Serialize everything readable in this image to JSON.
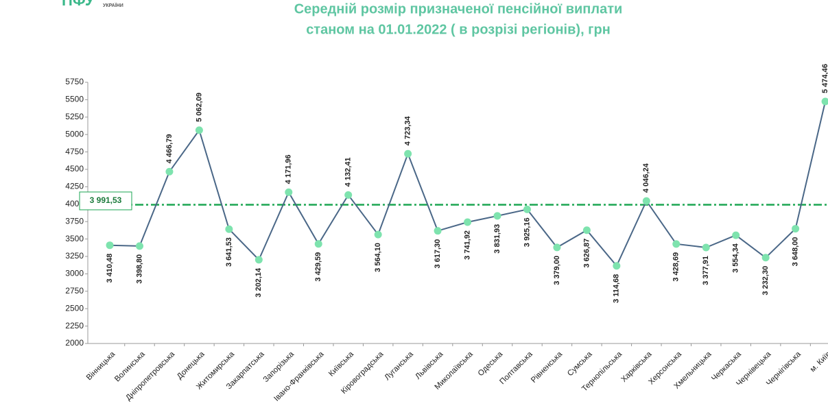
{
  "logo": {
    "text": "ПФУ",
    "subtext": "УКРАЇНИ"
  },
  "chart_data": {
    "type": "line",
    "title": "Середній розмір призначеної пенсійної виплати",
    "subtitle": "станом на 01.01.2022 ( в розрізі регіонів), грн",
    "categories": [
      "Вінницька",
      "Волинська",
      "Дніпропетровська",
      "Донецька",
      "Житомирська",
      "Закарпатська",
      "Запорізька",
      "Івано-Франківська",
      "Київська",
      "Кіровоградська",
      "Луганська",
      "Львівська",
      "Миколаївська",
      "Одеська",
      "Полтавська",
      "Рівненська",
      "Сумська",
      "Тернопільська",
      "Харківська",
      "Херсонська",
      "Хмельницька",
      "Черкаська",
      "Чернівецька",
      "Чернігівська",
      "м. Київ"
    ],
    "series": [
      {
        "name": "Середній розмір",
        "color": "#4a6787",
        "marker_color": "#7ee3ae",
        "values": [
          3410.48,
          3398.8,
          4466.79,
          5062.09,
          3641.53,
          3202.14,
          4171.96,
          3429.59,
          4132.41,
          3564.1,
          4723.34,
          3617.3,
          3741.92,
          3831.93,
          3925.16,
          3379.0,
          3626.87,
          3114.68,
          4046.24,
          3428.69,
          3377.91,
          3554.34,
          3232.3,
          3648.0,
          5474.46
        ],
        "value_labels": [
          "3 410,48",
          "3 398,80",
          "4 466,79",
          "5 062,09",
          "3 641,53",
          "3 202,14",
          "4 171,96",
          "3 429,59",
          "4 132,41",
          "3 564,10",
          "4 723,34",
          "3 617,30",
          "3 741,92",
          "3 831,93",
          "3 925,16",
          "3 379,00",
          "3 626,87",
          "3 114,68",
          "4 046,24",
          "3 428,69",
          "3 377,91",
          "3 554,34",
          "3 232,30",
          "3 648,00",
          "5 474,46"
        ]
      }
    ],
    "reference": {
      "value": 3991.53,
      "label": "3 991,53",
      "color": "#1aa550"
    },
    "ylim": [
      2000,
      5750
    ],
    "yticks": [
      2000,
      2250,
      2500,
      2750,
      3000,
      3250,
      3500,
      3750,
      4000,
      4250,
      4500,
      4750,
      5000,
      5250,
      5500,
      5750
    ]
  }
}
